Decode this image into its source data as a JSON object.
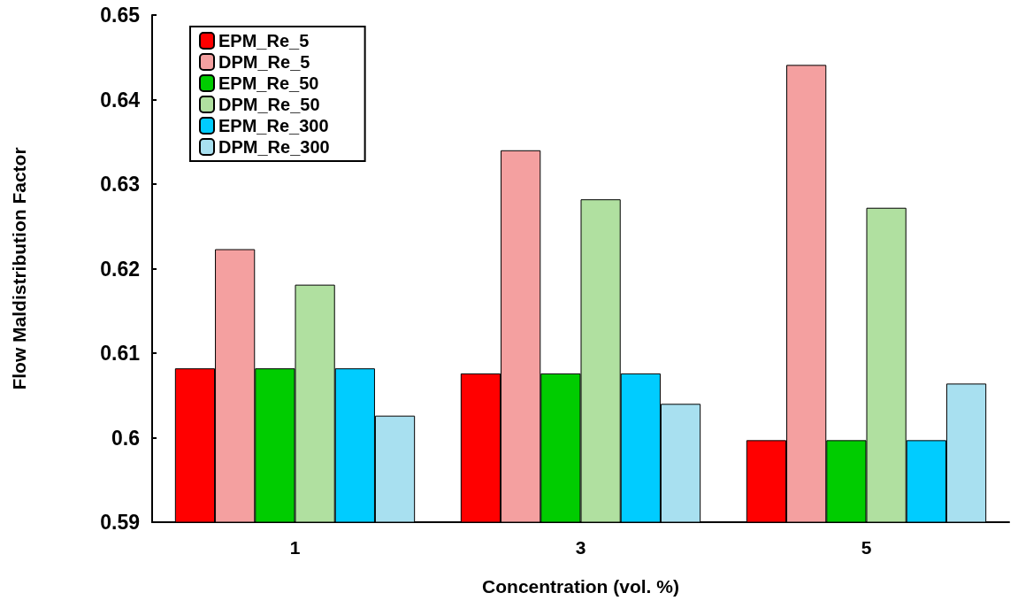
{
  "chart_data": {
    "type": "bar",
    "xlabel": "Concentration (vol. %)",
    "ylabel": "Flow Maldistribution Factor",
    "categories": [
      "1",
      "3",
      "5"
    ],
    "series": [
      {
        "name": "EPM_Re_5",
        "color": "#ff0000",
        "values": [
          0.6082,
          0.6076,
          0.5997
        ]
      },
      {
        "name": "DPM_Re_5",
        "color": "#f4a0a0",
        "values": [
          0.6223,
          0.634,
          0.6441
        ]
      },
      {
        "name": "EPM_Re_50",
        "color": "#00cc00",
        "values": [
          0.6082,
          0.6076,
          0.5997
        ]
      },
      {
        "name": "DPM_Re_50",
        "color": "#b0e0a0",
        "values": [
          0.6181,
          0.6282,
          0.6272
        ]
      },
      {
        "name": "EPM_Re_300",
        "color": "#00ccff",
        "values": [
          0.6082,
          0.6076,
          0.5997
        ]
      },
      {
        "name": "DPM_Re_300",
        "color": "#a8e0f0",
        "values": [
          0.6026,
          0.604,
          0.6064
        ]
      }
    ],
    "ylim": [
      0.59,
      0.65
    ],
    "yticks": [
      0.59,
      0.6,
      0.61,
      0.62,
      0.63,
      0.64,
      0.65
    ],
    "grid": false,
    "legend": "top left"
  }
}
